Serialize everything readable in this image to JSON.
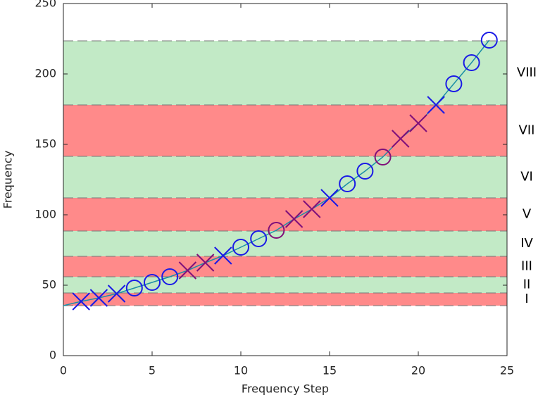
{
  "chart_data": {
    "type": "line",
    "x_label": "Frequency Step",
    "y_label": "Frequency",
    "xlim": [
      0,
      25
    ],
    "xticks": [
      0,
      5,
      10,
      15,
      20,
      25
    ],
    "ylim": [
      0,
      250
    ],
    "yticks": [
      0,
      50,
      100,
      150,
      200,
      250
    ],
    "bands": [
      {
        "label": "I",
        "from": 35.5,
        "to": 44.5,
        "color": "#ff8a8a"
      },
      {
        "label": "II",
        "from": 44.5,
        "to": 56,
        "color": "#c2eac6"
      },
      {
        "label": "III",
        "from": 56,
        "to": 70.5,
        "color": "#ff8a8a"
      },
      {
        "label": "IV",
        "from": 70.5,
        "to": 88.5,
        "color": "#c2eac6"
      },
      {
        "label": "V",
        "from": 88.5,
        "to": 112,
        "color": "#ff8a8a"
      },
      {
        "label": "VI",
        "from": 112,
        "to": 141.5,
        "color": "#c2eac6"
      },
      {
        "label": "VII",
        "from": 141.5,
        "to": 178,
        "color": "#ff8a8a"
      },
      {
        "label": "VIII",
        "from": 178,
        "to": 223.5,
        "color": "#c2eac6"
      }
    ],
    "series": [
      {
        "marker": "none",
        "color": "#1b8fa6",
        "x": [
          0,
          1,
          2,
          3,
          4,
          5,
          6,
          7,
          8,
          9,
          10,
          11,
          12,
          13,
          14,
          15,
          16,
          17,
          18,
          19,
          20,
          21,
          22,
          23,
          24
        ],
        "values": [
          35.5,
          38.5,
          41,
          44,
          48,
          52,
          56,
          60.5,
          66,
          71,
          77,
          83,
          89,
          97,
          104,
          112,
          122,
          131,
          141,
          154,
          165,
          178,
          193,
          208,
          224
        ]
      },
      {
        "marker": "x",
        "color": "#1a1ae6",
        "x": [
          1,
          2,
          3,
          9,
          15,
          21
        ],
        "values": [
          38.5,
          41,
          44,
          71,
          112,
          178
        ]
      },
      {
        "marker": "x",
        "color": "#80107a",
        "x": [
          7,
          8,
          13,
          14,
          19,
          20
        ],
        "values": [
          60.5,
          66,
          97,
          104,
          154,
          165
        ]
      },
      {
        "marker": "o",
        "color": "#1a1ae6",
        "x": [
          4,
          5,
          6,
          10,
          11,
          16,
          17,
          22,
          23,
          24
        ],
        "values": [
          48,
          52,
          56,
          77,
          83,
          122,
          131,
          193,
          208,
          224
        ]
      },
      {
        "marker": "o",
        "color": "#80107a",
        "x": [
          12,
          18
        ],
        "values": [
          89,
          141
        ]
      }
    ]
  }
}
